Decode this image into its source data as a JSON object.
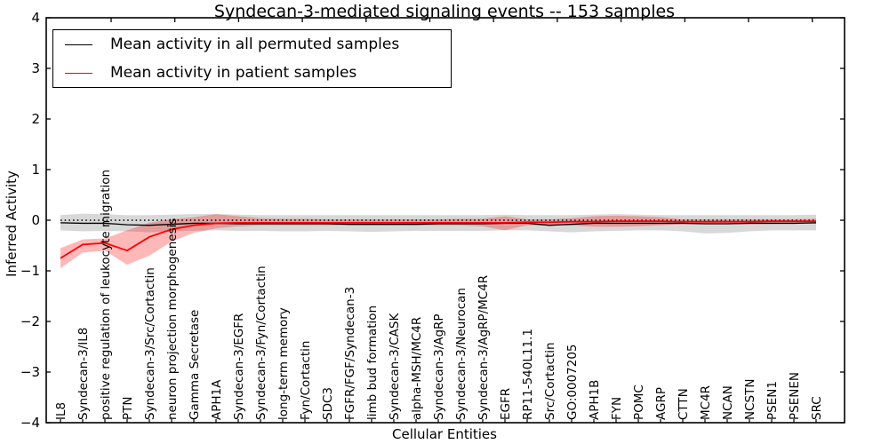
{
  "title": "Syndecan-3-mediated signaling events -- 153 samples",
  "axes": {
    "xlabel": "Cellular Entities",
    "ylabel": "Inferred Activity",
    "ytick_labels": [
      "4",
      "3",
      "2",
      "1",
      "0",
      "−1",
      "−2",
      "−3",
      "−4"
    ]
  },
  "legend": {
    "items": [
      {
        "label": "Mean activity in all permuted samples",
        "color": "#000000"
      },
      {
        "label": "Mean activity in patient samples",
        "color": "#ff0000"
      }
    ]
  },
  "chart_data": {
    "type": "line",
    "title": "Syndecan-3-mediated signaling events -- 153 samples",
    "xlabel": "Cellular Entities",
    "ylabel": "Inferred Activity",
    "ylim": [
      -4,
      4
    ],
    "grid": false,
    "legend_position": "upper left",
    "reference_line": {
      "y": 0,
      "style": "dotted",
      "color": "#000000"
    },
    "categories": [
      "IL8",
      "Syndecan-3/IL8",
      "positive regulation of leukocyte migration",
      "PTN",
      "Syndecan-3/Src/Cortactin",
      "neuron projection morphogenesis",
      "Gamma Secretase",
      "APH1A",
      "Syndecan-3/EGFR",
      "Syndecan-3/Fyn/Cortactin",
      "long-term memory",
      "Fyn/Cortactin",
      "SDC3",
      "FGFR/FGF/Syndecan-3",
      "limb bud formation",
      "Syndecan-3/CASK",
      "alpha-MSH/MC4R",
      "Syndecan-3/AgRP",
      "Syndecan-3/Neurocan",
      "Syndecan-3/AgRP/MC4R",
      "EGFR",
      "RP11-540L11.1",
      "Src/Cortactin",
      "GO:0007205",
      "APH1B",
      "FYN",
      "POMC",
      "AGRP",
      "CTTN",
      "MC4R",
      "NCAN",
      "NCSTN",
      "PSEN1",
      "PSENEN",
      "SRC"
    ],
    "series": [
      {
        "name": "Mean activity in all permuted samples",
        "color": "#000000",
        "values": [
          -0.05,
          -0.06,
          -0.06,
          -0.09,
          -0.1,
          -0.08,
          -0.06,
          -0.06,
          -0.07,
          -0.07,
          -0.07,
          -0.07,
          -0.07,
          -0.08,
          -0.08,
          -0.08,
          -0.08,
          -0.07,
          -0.07,
          -0.07,
          -0.06,
          -0.06,
          -0.1,
          -0.08,
          -0.06,
          -0.06,
          -0.06,
          -0.06,
          -0.06,
          -0.07,
          -0.07,
          -0.06,
          -0.06,
          -0.06,
          -0.05
        ]
      },
      {
        "name": "Mean activity in patient samples",
        "color": "#ff0000",
        "values": [
          -0.75,
          -0.48,
          -0.45,
          -0.6,
          -0.33,
          -0.18,
          -0.1,
          -0.06,
          -0.05,
          -0.05,
          -0.05,
          -0.05,
          -0.05,
          -0.05,
          -0.05,
          -0.05,
          -0.05,
          -0.05,
          -0.05,
          -0.05,
          -0.05,
          -0.04,
          -0.04,
          -0.03,
          -0.03,
          -0.02,
          -0.02,
          -0.02,
          -0.03,
          -0.03,
          -0.03,
          -0.03,
          -0.02,
          -0.02,
          -0.02
        ]
      }
    ],
    "bands": [
      {
        "name": "permuted-confidence-band",
        "color": "#999999",
        "opacity": 0.38,
        "upper": [
          0.1,
          0.13,
          0.12,
          0.1,
          0.1,
          0.11,
          0.12,
          0.12,
          0.11,
          0.1,
          0.1,
          0.1,
          0.1,
          0.1,
          0.1,
          0.1,
          0.1,
          0.1,
          0.1,
          0.1,
          0.11,
          0.1,
          0.1,
          0.1,
          0.11,
          0.12,
          0.11,
          0.1,
          0.1,
          0.1,
          0.1,
          0.1,
          0.1,
          0.1,
          0.11
        ],
        "lower": [
          -0.2,
          -0.22,
          -0.21,
          -0.22,
          -0.24,
          -0.22,
          -0.21,
          -0.2,
          -0.21,
          -0.21,
          -0.22,
          -0.22,
          -0.21,
          -0.22,
          -0.23,
          -0.22,
          -0.21,
          -0.21,
          -0.21,
          -0.21,
          -0.2,
          -0.2,
          -0.22,
          -0.24,
          -0.22,
          -0.21,
          -0.2,
          -0.2,
          -0.22,
          -0.26,
          -0.25,
          -0.22,
          -0.2,
          -0.2,
          -0.2
        ]
      },
      {
        "name": "patient-confidence-band",
        "color": "#ff0000",
        "opacity": 0.28,
        "upper": [
          -0.55,
          -0.38,
          -0.36,
          -0.2,
          -0.05,
          0.02,
          0.06,
          0.12,
          0.08,
          0.04,
          0.03,
          0.03,
          0.02,
          0.02,
          0.02,
          0.02,
          0.02,
          0.02,
          0.03,
          0.03,
          0.08,
          0.02,
          0.02,
          0.04,
          0.08,
          0.09,
          0.08,
          0.06,
          0.02,
          0.02,
          0.02,
          0.02,
          0.02,
          0.02,
          0.03
        ],
        "lower": [
          -0.95,
          -0.64,
          -0.6,
          -0.88,
          -0.7,
          -0.42,
          -0.25,
          -0.16,
          -0.12,
          -0.1,
          -0.1,
          -0.1,
          -0.1,
          -0.1,
          -0.1,
          -0.1,
          -0.1,
          -0.1,
          -0.1,
          -0.12,
          -0.2,
          -0.1,
          -0.1,
          -0.1,
          -0.13,
          -0.13,
          -0.12,
          -0.1,
          -0.08,
          -0.08,
          -0.08,
          -0.08,
          -0.07,
          -0.07,
          -0.07
        ]
      }
    ]
  }
}
